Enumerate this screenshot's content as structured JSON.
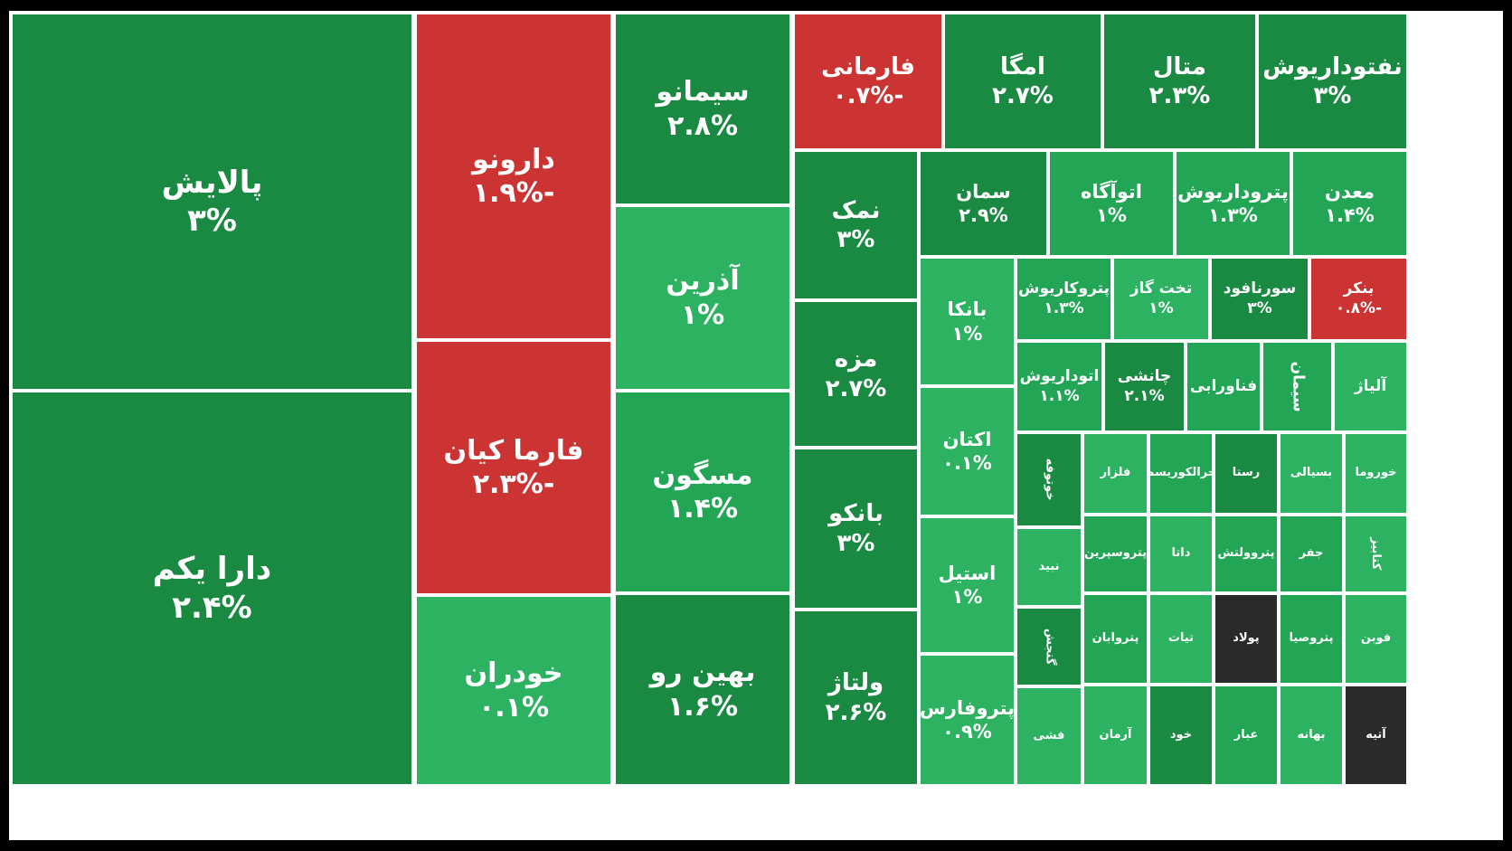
{
  "chart_data": {
    "type": "treemap",
    "percent_unit": "%",
    "colors": {
      "up_dark": "#1a8a43",
      "up": "#1f9a4a",
      "up_mid": "#22a655",
      "up_light": "#2cb260",
      "down": "#cc3434",
      "flat": "#2a2a2a"
    },
    "tiles": [
      {
        "name": "پالایش",
        "change": "۳%",
        "value": 3,
        "color": "up_dark"
      },
      {
        "name": "دارا یکم",
        "change": "۲.۴%",
        "value": 2.4,
        "color": "up_dark"
      },
      {
        "name": "دارونو",
        "change": "-۱.۹%",
        "value": -1.9,
        "color": "down"
      },
      {
        "name": "فارما کیان",
        "change": "-۲.۳%",
        "value": -2.3,
        "color": "down"
      },
      {
        "name": "خودران",
        "change": "۰.۱%",
        "value": 0.1,
        "color": "up_light"
      },
      {
        "name": "سیمانو",
        "change": "۲.۸%",
        "value": 2.8,
        "color": "up_dark"
      },
      {
        "name": "آذرین",
        "change": "۱%",
        "value": 1,
        "color": "up_light"
      },
      {
        "name": "مسگون",
        "change": "۱.۴%",
        "value": 1.4,
        "color": "up_mid"
      },
      {
        "name": "بهین رو",
        "change": "۱.۶%",
        "value": 1.6,
        "color": "up_dark"
      },
      {
        "name": "فارمانی",
        "change": "-۰.۷%",
        "value": -0.7,
        "color": "down"
      },
      {
        "name": "امگا",
        "change": "۲.۷%",
        "value": 2.7,
        "color": "up_dark"
      },
      {
        "name": "متال",
        "change": "۲.۳%",
        "value": 2.3,
        "color": "up_dark"
      },
      {
        "name": "نفتوداریوش",
        "change": "۳%",
        "value": 3,
        "color": "up_dark"
      },
      {
        "name": "نمک",
        "change": "۳%",
        "value": 3,
        "color": "up_dark"
      },
      {
        "name": "مزه",
        "change": "۲.۷%",
        "value": 2.7,
        "color": "up_dark"
      },
      {
        "name": "بانکو",
        "change": "۳%",
        "value": 3,
        "color": "up_dark"
      },
      {
        "name": "ولتاژ",
        "change": "۲.۶%",
        "value": 2.6,
        "color": "up_dark"
      },
      {
        "name": "سمان",
        "change": "۲.۹%",
        "value": 2.9,
        "color": "up_dark"
      },
      {
        "name": "اتوآگاه",
        "change": "۱%",
        "value": 1,
        "color": "up_mid"
      },
      {
        "name": "پتروداریوش",
        "change": "۱.۳%",
        "value": 1.3,
        "color": "up_mid"
      },
      {
        "name": "معدن",
        "change": "۱.۴%",
        "value": 1.4,
        "color": "up_mid"
      },
      {
        "name": "بانکا",
        "change": "۱%",
        "value": 1,
        "color": "up_light"
      },
      {
        "name": "اکتان",
        "change": "۰.۱%",
        "value": 0.1,
        "color": "up_light"
      },
      {
        "name": "استیل",
        "change": "۱%",
        "value": 1,
        "color": "up_light"
      },
      {
        "name": "پتروفارس",
        "change": "۰.۹%",
        "value": 0.9,
        "color": "up_light"
      },
      {
        "name": "پتروکاریوش",
        "change": "۱.۳%",
        "value": 1.3,
        "color": "up_mid"
      },
      {
        "name": "تخت گاز",
        "change": "۱%",
        "value": 1,
        "color": "up_light"
      },
      {
        "name": "سورنافود",
        "change": "۳%",
        "value": 3,
        "color": "up_dark"
      },
      {
        "name": "بنکر",
        "change": "-۰.۸%",
        "value": -0.8,
        "color": "down"
      },
      {
        "name": "اتوداریوش",
        "change": "۱.۱%",
        "value": 1.1,
        "color": "up_mid"
      },
      {
        "name": "چانشی",
        "change": "۲.۱%",
        "value": 2.1,
        "color": "up_dark"
      },
      {
        "name": "فناورابی",
        "change": "",
        "color": "up_mid"
      },
      {
        "name": "سیمان",
        "change": "",
        "color": "up_mid"
      },
      {
        "name": "آلیاژ",
        "change": "",
        "color": "up_light"
      },
      {
        "name": "خوتوفه",
        "change": "",
        "color": "up_dark"
      },
      {
        "name": "فلزار",
        "change": "",
        "color": "up_light"
      },
      {
        "name": "جرالکوریسم",
        "change": "",
        "color": "up_mid"
      },
      {
        "name": "رستا",
        "change": "",
        "color": "up_dark"
      },
      {
        "name": "بسیالی",
        "change": "",
        "color": "up_light"
      },
      {
        "name": "خوروما",
        "change": "",
        "color": "up_light"
      },
      {
        "name": "نبید",
        "change": "",
        "color": "up_light"
      },
      {
        "name": "پتروسپرین",
        "change": "",
        "color": "up_mid"
      },
      {
        "name": "داتا",
        "change": "",
        "color": "up_light"
      },
      {
        "name": "پتروولتش",
        "change": "",
        "color": "up_mid"
      },
      {
        "name": "جفر",
        "change": "",
        "color": "up_mid"
      },
      {
        "name": "کتابیز",
        "change": "",
        "color": "up_light"
      },
      {
        "name": "گنجش",
        "change": "",
        "color": "up_dark"
      },
      {
        "name": "پتروابان",
        "change": "",
        "color": "up_mid"
      },
      {
        "name": "تیات",
        "change": "",
        "color": "up_light"
      },
      {
        "name": "پولاد",
        "change": "",
        "color": "flat"
      },
      {
        "name": "پتروصیا",
        "change": "",
        "color": "up_mid"
      },
      {
        "name": "فوبن",
        "change": "",
        "color": "up_light"
      },
      {
        "name": "فشی",
        "change": "",
        "color": "up_light"
      },
      {
        "name": "آرمان",
        "change": "",
        "color": "up_light"
      },
      {
        "name": "خود",
        "change": "",
        "color": "up_dark"
      },
      {
        "name": "عبار",
        "change": "",
        "color": "up_mid"
      },
      {
        "name": "بهانه",
        "change": "",
        "color": "up_light"
      },
      {
        "name": "آتیه",
        "change": "",
        "color": "flat"
      }
    ]
  }
}
